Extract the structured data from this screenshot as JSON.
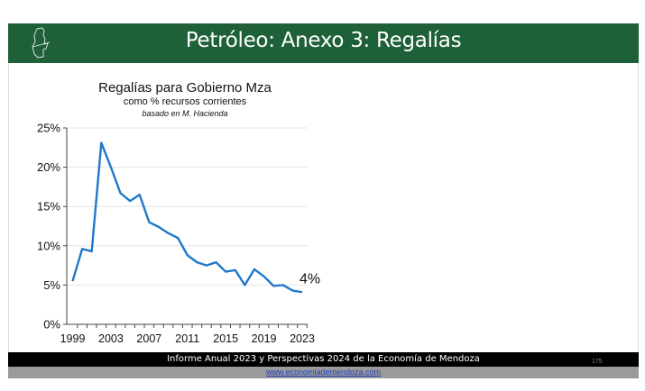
{
  "header": {
    "title": "Petróleo: Anexo 3: Regalías",
    "logo_icon": "mendoza-map-outline-icon"
  },
  "chart_data": {
    "type": "line",
    "title": "Regalías para Gobierno Mza",
    "subtitle": "como % recursos corrientes",
    "source_note": "basado en M. Hacienda",
    "x": [
      1999,
      2000,
      2001,
      2002,
      2003,
      2004,
      2005,
      2006,
      2007,
      2008,
      2009,
      2010,
      2011,
      2012,
      2013,
      2014,
      2015,
      2016,
      2017,
      2018,
      2019,
      2020,
      2021,
      2022,
      2023
    ],
    "series": [
      {
        "values": [
          5.5,
          9.6,
          9.3,
          23.1,
          20.0,
          16.7,
          15.7,
          16.5,
          13.0,
          12.4,
          11.6,
          11.0,
          8.8,
          7.9,
          7.5,
          7.9,
          6.7,
          6.9,
          5.0,
          7.0,
          6.1,
          4.9,
          5.0,
          4.3,
          4.1
        ],
        "color": "#1f78c8"
      }
    ],
    "ylim": [
      0,
      25
    ],
    "yticks": [
      "0%",
      "5%",
      "10%",
      "15%",
      "20%",
      "25%"
    ],
    "xticks": [
      "1999",
      "2003",
      "2007",
      "2011",
      "2015",
      "2019",
      "2023"
    ],
    "annotation": "4%",
    "grid": true
  },
  "footer": {
    "report": "Informe Anual 2023 y Perspectivas 2024 de la Economía de Mendoza",
    "link": "www.economiademendoza.com",
    "page": "175"
  }
}
